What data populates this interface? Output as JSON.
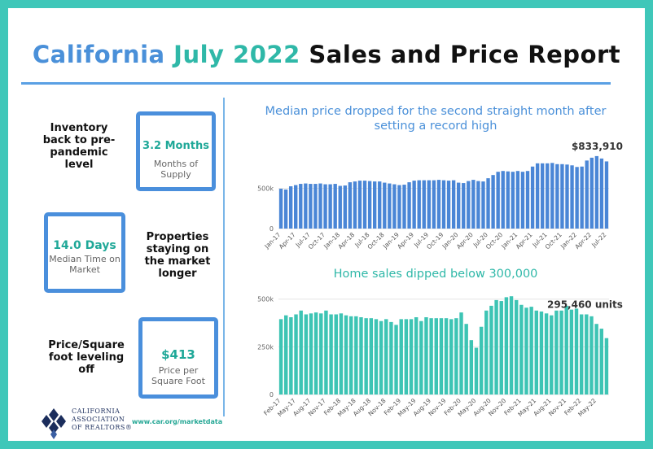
{
  "title": {
    "part1": "California ",
    "part2": "July 2022",
    "part3": " Sales and Price Report"
  },
  "stats": [
    {
      "label": "Inventory back to pre-pandemic level",
      "value": "3.2 Months",
      "sub": "Months of Supply"
    },
    {
      "label": "Properties staying on the market longer",
      "value": "14.0 Days",
      "sub": "Median Time on Market"
    },
    {
      "label": "Price/Square foot leveling off",
      "value": "$413",
      "sub": "Price per Square Foot"
    }
  ],
  "logo": {
    "line1": "CALIFORNIA",
    "line2": "ASSOCIATION",
    "line3": "OF REALTORS®"
  },
  "website": "www.car.org/marketdata",
  "colors": {
    "border": "#3fc7b9",
    "blue": "#4a90d9",
    "teal": "#2fb8a8",
    "price_bar": "#4a86d6",
    "sales_bar": "#3dc4b4"
  },
  "chart_data": [
    {
      "type": "bar",
      "title": "Median price dropped for the second straight month after setting a record high",
      "annotation": "$833,910",
      "yticks": [
        "0",
        "500k"
      ],
      "ylim": [
        0,
        1000000
      ],
      "grid": true,
      "xtick_labels": [
        "Jan-17",
        "Apr-17",
        "Jul-17",
        "Oct-17",
        "Jan-18",
        "Apr-18",
        "Jul-18",
        "Oct-18",
        "Jan-19",
        "Apr-19",
        "Jul-19",
        "Oct-19",
        "Jan-20",
        "Apr-20",
        "Jul-20",
        "Oct-20",
        "Jan-21",
        "Apr-21",
        "Jul-21",
        "Oct-21",
        "Jan-22",
        "Apr-22",
        "Jul-22"
      ],
      "categories": [
        "Jan-17",
        "Feb-17",
        "Mar-17",
        "Apr-17",
        "May-17",
        "Jun-17",
        "Jul-17",
        "Aug-17",
        "Sep-17",
        "Oct-17",
        "Nov-17",
        "Dec-17",
        "Jan-18",
        "Feb-18",
        "Mar-18",
        "Apr-18",
        "May-18",
        "Jun-18",
        "Jul-18",
        "Aug-18",
        "Sep-18",
        "Oct-18",
        "Nov-18",
        "Dec-18",
        "Jan-19",
        "Feb-19",
        "Mar-19",
        "Apr-19",
        "May-19",
        "Jun-19",
        "Jul-19",
        "Aug-19",
        "Sep-19",
        "Oct-19",
        "Nov-19",
        "Dec-19",
        "Jan-20",
        "Feb-20",
        "Mar-20",
        "Apr-20",
        "May-20",
        "Jun-20",
        "Jul-20",
        "Aug-20",
        "Sep-20",
        "Oct-20",
        "Nov-20",
        "Dec-20",
        "Jan-21",
        "Feb-21",
        "Mar-21",
        "Apr-21",
        "May-21",
        "Jun-21",
        "Jul-21",
        "Aug-21",
        "Sep-21",
        "Oct-21",
        "Nov-21",
        "Dec-21",
        "Jan-22",
        "Feb-22",
        "Mar-22",
        "Apr-22",
        "May-22",
        "Jun-22",
        "Jul-22"
      ],
      "values": [
        495000,
        485000,
        525000,
        540000,
        555000,
        560000,
        555000,
        555000,
        560000,
        550000,
        550000,
        555000,
        530000,
        535000,
        575000,
        585000,
        595000,
        595000,
        590000,
        585000,
        585000,
        570000,
        560000,
        550000,
        540000,
        545000,
        575000,
        595000,
        600000,
        600000,
        600000,
        600000,
        605000,
        600000,
        595000,
        600000,
        570000,
        565000,
        590000,
        605000,
        590000,
        585000,
        625000,
        665000,
        705000,
        715000,
        710000,
        705000,
        715000,
        705000,
        715000,
        770000,
        810000,
        810000,
        810000,
        815000,
        800000,
        800000,
        795000,
        785000,
        765000,
        770000,
        845000,
        880000,
        900000,
        870000,
        834000
      ]
    },
    {
      "type": "bar",
      "title": "Home sales dipped below 300,000",
      "annotation": "295,460 units",
      "yticks": [
        "0",
        "250k",
        "500k"
      ],
      "ylim": [
        0,
        550000
      ],
      "grid": true,
      "xtick_labels": [
        "Feb-17",
        "May-17",
        "Aug-17",
        "Nov-17",
        "Feb-18",
        "May-18",
        "Aug-18",
        "Nov-18",
        "Feb-19",
        "May-19",
        "Aug-19",
        "Nov-19",
        "Feb-20",
        "May-20",
        "Aug-20",
        "Nov-20",
        "Feb-21",
        "May-21",
        "Aug-21",
        "Nov-21",
        "Feb-22",
        "May-22"
      ],
      "categories": [
        "Feb-17",
        "Mar-17",
        "Apr-17",
        "May-17",
        "Jun-17",
        "Jul-17",
        "Aug-17",
        "Sep-17",
        "Oct-17",
        "Nov-17",
        "Dec-17",
        "Jan-18",
        "Feb-18",
        "Mar-18",
        "Apr-18",
        "May-18",
        "Jun-18",
        "Jul-18",
        "Aug-18",
        "Sep-18",
        "Oct-18",
        "Nov-18",
        "Dec-18",
        "Jan-19",
        "Feb-19",
        "Mar-19",
        "Apr-19",
        "May-19",
        "Jun-19",
        "Jul-19",
        "Aug-19",
        "Sep-19",
        "Oct-19",
        "Nov-19",
        "Dec-19",
        "Jan-20",
        "Feb-20",
        "Mar-20",
        "Apr-20",
        "May-20",
        "Jun-20",
        "Jul-20",
        "Aug-20",
        "Sep-20",
        "Oct-20",
        "Nov-20",
        "Dec-20",
        "Jan-21",
        "Feb-21",
        "Mar-21",
        "Apr-21",
        "May-21",
        "Jun-21",
        "Jul-21",
        "Aug-21",
        "Sep-21",
        "Oct-21",
        "Nov-21",
        "Dec-21",
        "Jan-22",
        "Feb-22",
        "Mar-22",
        "Apr-22",
        "May-22",
        "Jun-22",
        "Jul-22"
      ],
      "values": [
        395000,
        415000,
        405000,
        420000,
        440000,
        420000,
        425000,
        430000,
        425000,
        440000,
        420000,
        420000,
        425000,
        415000,
        410000,
        410000,
        405000,
        400000,
        400000,
        395000,
        385000,
        395000,
        380000,
        365000,
        395000,
        395000,
        395000,
        405000,
        385000,
        405000,
        400000,
        400000,
        400000,
        400000,
        395000,
        400000,
        430000,
        370000,
        285000,
        245000,
        355000,
        440000,
        465000,
        495000,
        490000,
        510000,
        515000,
        495000,
        470000,
        455000,
        460000,
        440000,
        435000,
        425000,
        415000,
        440000,
        440000,
        465000,
        445000,
        450000,
        420000,
        420000,
        410000,
        370000,
        345000,
        295460
      ]
    }
  ]
}
